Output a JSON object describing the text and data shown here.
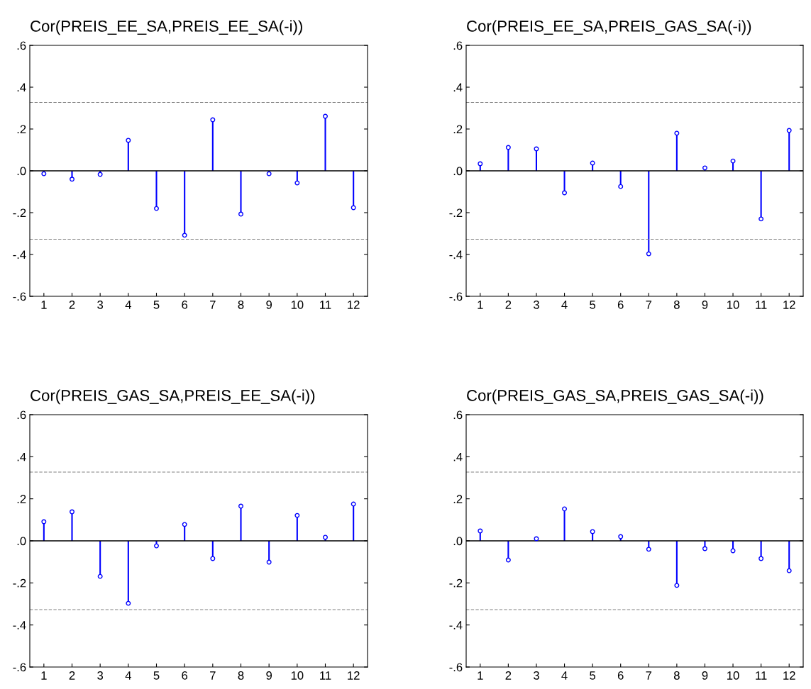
{
  "chart_data": [
    {
      "type": "lollipop",
      "title": "Cor(PREIS_EE_SA,PREIS_EE_SA(-i))",
      "categories": [
        "1",
        "2",
        "3",
        "4",
        "5",
        "6",
        "7",
        "8",
        "9",
        "10",
        "11",
        "12"
      ],
      "values": [
        -0.014,
        -0.04,
        -0.017,
        0.146,
        -0.18,
        -0.308,
        0.244,
        -0.207,
        -0.014,
        -0.058,
        0.261,
        -0.176
      ],
      "color": "#0000ff",
      "marker": "circle",
      "ylim": [
        -0.6,
        0.6
      ],
      "yticks": [
        {
          "value": -0.6,
          "label": "-.6"
        },
        {
          "value": -0.4,
          "label": "-.4"
        },
        {
          "value": -0.2,
          "label": "-.2"
        },
        {
          "value": 0,
          "label": ".0"
        },
        {
          "value": 0.2,
          "label": ".2"
        },
        {
          "value": 0.4,
          "label": ".4"
        },
        {
          "value": 0.6,
          "label": ".6"
        }
      ],
      "ref_lines": [
        {
          "axis": "y",
          "value": 0.327,
          "color": "#808080",
          "line_style": "dashed"
        },
        {
          "axis": "y",
          "value": -0.327,
          "color": "#808080",
          "line_style": "dashed"
        }
      ]
    },
    {
      "type": "lollipop",
      "title": "Cor(PREIS_EE_SA,PREIS_GAS_SA(-i))",
      "categories": [
        "1",
        "2",
        "3",
        "4",
        "5",
        "6",
        "7",
        "8",
        "9",
        "10",
        "11",
        "12"
      ],
      "values": [
        0.034,
        0.112,
        0.105,
        -0.105,
        0.037,
        -0.075,
        -0.397,
        0.18,
        0.014,
        0.047,
        -0.23,
        0.193
      ],
      "color": "#0000ff",
      "marker": "circle",
      "ylim": [
        -0.6,
        0.6
      ],
      "yticks": [
        {
          "value": -0.6,
          "label": "-.6"
        },
        {
          "value": -0.4,
          "label": "-.4"
        },
        {
          "value": -0.2,
          "label": "-.2"
        },
        {
          "value": 0,
          "label": ".0"
        },
        {
          "value": 0.2,
          "label": ".2"
        },
        {
          "value": 0.4,
          "label": ".4"
        },
        {
          "value": 0.6,
          "label": ".6"
        }
      ],
      "ref_lines": [
        {
          "axis": "y",
          "value": 0.327,
          "color": "#808080",
          "line_style": "dashed"
        },
        {
          "axis": "y",
          "value": -0.327,
          "color": "#808080",
          "line_style": "dashed"
        }
      ]
    },
    {
      "type": "lollipop",
      "title": "Cor(PREIS_GAS_SA,PREIS_EE_SA(-i))",
      "categories": [
        "1",
        "2",
        "3",
        "4",
        "5",
        "6",
        "7",
        "8",
        "9",
        "10",
        "11",
        "12"
      ],
      "values": [
        0.091,
        0.138,
        -0.169,
        -0.297,
        -0.024,
        0.078,
        -0.084,
        0.165,
        -0.101,
        0.121,
        0.017,
        0.175
      ],
      "color": "#0000ff",
      "marker": "circle",
      "ylim": [
        -0.6,
        0.6
      ],
      "yticks": [
        {
          "value": -0.6,
          "label": "-.6"
        },
        {
          "value": -0.4,
          "label": "-.4"
        },
        {
          "value": -0.2,
          "label": "-.2"
        },
        {
          "value": 0,
          "label": ".0"
        },
        {
          "value": 0.2,
          "label": ".2"
        },
        {
          "value": 0.4,
          "label": ".4"
        },
        {
          "value": 0.6,
          "label": ".6"
        }
      ],
      "ref_lines": [
        {
          "axis": "y",
          "value": 0.327,
          "color": "#808080",
          "line_style": "dashed"
        },
        {
          "axis": "y",
          "value": -0.327,
          "color": "#808080",
          "line_style": "dashed"
        }
      ]
    },
    {
      "type": "lollipop",
      "title": "Cor(PREIS_GAS_SA,PREIS_GAS_SA(-i))",
      "categories": [
        "1",
        "2",
        "3",
        "4",
        "5",
        "6",
        "7",
        "8",
        "9",
        "10",
        "11",
        "12"
      ],
      "values": [
        0.047,
        -0.091,
        0.01,
        0.152,
        0.044,
        0.02,
        -0.04,
        -0.212,
        -0.037,
        -0.047,
        -0.084,
        -0.142
      ],
      "color": "#0000ff",
      "marker": "circle",
      "ylim": [
        -0.6,
        0.6
      ],
      "yticks": [
        {
          "value": -0.6,
          "label": "-.6"
        },
        {
          "value": -0.4,
          "label": "-.4"
        },
        {
          "value": -0.2,
          "label": "-.2"
        },
        {
          "value": 0,
          "label": ".0"
        },
        {
          "value": 0.2,
          "label": ".2"
        },
        {
          "value": 0.4,
          "label": ".4"
        },
        {
          "value": 0.6,
          "label": ".6"
        }
      ],
      "ref_lines": [
        {
          "axis": "y",
          "value": 0.327,
          "color": "#808080",
          "line_style": "dashed"
        },
        {
          "axis": "y",
          "value": -0.327,
          "color": "#808080",
          "line_style": "dashed"
        }
      ]
    }
  ]
}
